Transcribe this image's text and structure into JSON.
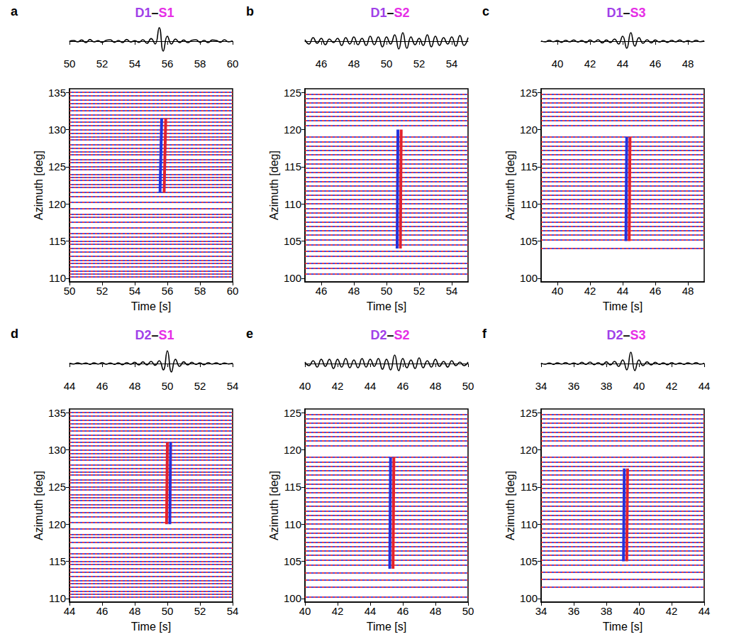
{
  "chart_data": [
    {
      "type": "record_section",
      "panel": "a",
      "title": "D1–S1",
      "xlabel": "Time [s]",
      "ylabel": "Azimuth [deg]",
      "xlim": [
        50,
        60
      ],
      "xticks": [
        50,
        52,
        54,
        56,
        58,
        60
      ],
      "ylim": [
        109.5,
        135.5
      ],
      "yticks": [
        110,
        115,
        120,
        125,
        130,
        135
      ],
      "beam": {
        "tick_labels": "x",
        "ylim": [
          -1,
          1
        ],
        "x": [
          50,
          50.25,
          50.5,
          50.75,
          51,
          51.25,
          51.5,
          51.75,
          52,
          52.25,
          52.5,
          52.75,
          53,
          53.25,
          53.5,
          53.75,
          54,
          54.25,
          54.5,
          54.75,
          55,
          55.25,
          55.5,
          55.75,
          56,
          56.25,
          56.5,
          56.75,
          57,
          57.25,
          57.5,
          57.75,
          58,
          58.25,
          58.5,
          58.75,
          59,
          59.25,
          59.5,
          59.75,
          60
        ],
        "values": [
          0,
          0.05,
          -0.05,
          0.08,
          -0.1,
          0.12,
          -0.05,
          0.03,
          -0.08,
          0.06,
          0.1,
          -0.08,
          0.05,
          -0.1,
          0.12,
          -0.06,
          0.04,
          -0.08,
          0.1,
          -0.15,
          0.18,
          -0.2,
          0.95,
          -0.7,
          0.35,
          -0.2,
          0.15,
          -0.1,
          0.08,
          -0.1,
          0.06,
          0.1,
          -0.08,
          0.06,
          -0.1,
          0.08,
          0.05,
          -0.08,
          0.1,
          -0.05,
          0.02
        ]
      },
      "stations": [
        110.2,
        110.6,
        111,
        111.5,
        112,
        112.4,
        113,
        113.5,
        114,
        114.6,
        115,
        115.5,
        116,
        116.8,
        117.6,
        118.2,
        118.6,
        119.4,
        120.2,
        121,
        121.6,
        122.2,
        122.6,
        123.2,
        123.6,
        124,
        124.6,
        125,
        125.6,
        126,
        126.6,
        127,
        127.5,
        128,
        128.6,
        129,
        129.5,
        130,
        130.6,
        131,
        131.5,
        132,
        132.6,
        133,
        133.5,
        134,
        134.6,
        135
      ],
      "arrival": {
        "azimuths": [
          121.5,
          131.5
        ],
        "trough": [
          55.55,
          55.65
        ],
        "peak": [
          55.8,
          55.9
        ]
      }
    },
    {
      "type": "record_section",
      "panel": "b",
      "title": "D1–S2",
      "xlabel": "Time [s]",
      "ylabel": "Azimuth [deg]",
      "xlim": [
        45,
        55
      ],
      "xticks": [
        46,
        48,
        50,
        52,
        54
      ],
      "ylim": [
        99.5,
        125.5
      ],
      "yticks": [
        100,
        105,
        110,
        115,
        120,
        125
      ],
      "beam": {
        "tick_labels": "x",
        "ylim": [
          -1,
          1
        ],
        "x": [
          45,
          45.25,
          45.5,
          45.75,
          46,
          46.25,
          46.5,
          46.75,
          47,
          47.25,
          47.5,
          47.75,
          48,
          48.25,
          48.5,
          48.75,
          49,
          49.25,
          49.5,
          49.75,
          50,
          50.25,
          50.5,
          50.75,
          51,
          51.25,
          51.5,
          51.75,
          52,
          52.25,
          52.5,
          52.75,
          53,
          53.25,
          53.5,
          53.75,
          54,
          54.25,
          54.5,
          54.75,
          55
        ],
        "values": [
          0.1,
          -0.2,
          0.25,
          -0.15,
          0.2,
          -0.25,
          0.15,
          -0.1,
          0.2,
          -0.3,
          0.25,
          -0.2,
          0.3,
          -0.25,
          0.2,
          -0.3,
          0.35,
          -0.25,
          0.3,
          -0.4,
          0.3,
          -0.2,
          0.45,
          -0.55,
          0.6,
          -0.5,
          0.3,
          -0.25,
          0.2,
          -0.3,
          0.45,
          -0.4,
          0.35,
          -0.3,
          0.25,
          -0.2,
          0.3,
          -0.35,
          0.4,
          -0.3,
          0.25
        ]
      },
      "stations": [
        100.6,
        101.3,
        102,
        103,
        103.6,
        104.5,
        105.2,
        105.8,
        106.4,
        107,
        107.6,
        108.2,
        108.8,
        109.4,
        110,
        110.6,
        111.2,
        111.8,
        112.4,
        113,
        113.6,
        114.2,
        114.8,
        115.4,
        116,
        116.6,
        117.2,
        117.8,
        118.4,
        119,
        120.6,
        121.2,
        121.8,
        122.4,
        123,
        123.6,
        124.2,
        124.8
      ],
      "arrival": {
        "azimuths": [
          104,
          120
        ],
        "trough": [
          50.65,
          50.7
        ],
        "peak": [
          50.85,
          50.9
        ]
      }
    },
    {
      "type": "record_section",
      "panel": "c",
      "title": "D1–S3",
      "xlabel": "Time [s]",
      "ylabel": "Azimuth [deg]",
      "xlim": [
        39,
        49
      ],
      "xticks": [
        40,
        42,
        44,
        46,
        48
      ],
      "ylim": [
        99.5,
        125.5
      ],
      "yticks": [
        100,
        105,
        110,
        115,
        120,
        125
      ],
      "beam": {
        "tick_labels": "x",
        "ylim": [
          -1,
          1
        ],
        "x": [
          39,
          39.25,
          39.5,
          39.75,
          40,
          40.25,
          40.5,
          40.75,
          41,
          41.25,
          41.5,
          41.75,
          42,
          42.25,
          42.5,
          42.75,
          43,
          43.25,
          43.5,
          43.75,
          44,
          44.25,
          44.5,
          44.75,
          45,
          45.25,
          45.5,
          45.75,
          46,
          46.25,
          46.5,
          46.75,
          47,
          47.25,
          47.5,
          47.75,
          48,
          48.25,
          48.5,
          48.75,
          49
        ],
        "values": [
          0.02,
          -0.05,
          0.06,
          -0.04,
          0.05,
          -0.08,
          0.06,
          -0.05,
          0.08,
          -0.06,
          0.05,
          -0.1,
          0.08,
          -0.06,
          0.1,
          -0.12,
          0.08,
          -0.1,
          0.15,
          -0.2,
          0.35,
          -0.5,
          0.6,
          -0.35,
          0.25,
          -0.15,
          0.1,
          -0.12,
          0.08,
          -0.06,
          0.05,
          -0.08,
          0.06,
          -0.05,
          0.08,
          -0.06,
          0.04,
          -0.05,
          0.06,
          -0.04,
          0.02
        ]
      },
      "stations": [
        104,
        105.2,
        105.8,
        106.4,
        107,
        107.6,
        108.2,
        108.8,
        109.4,
        110,
        110.6,
        111.2,
        111.8,
        112.4,
        113,
        113.6,
        114.2,
        114.8,
        115.4,
        116,
        116.6,
        117.2,
        117.8,
        118.4,
        119,
        120.6,
        121.2,
        121.8,
        122.4,
        123,
        123.6,
        124.2,
        124.8
      ],
      "arrival": {
        "azimuths": [
          105,
          119
        ],
        "trough": [
          44.2,
          44.25
        ],
        "peak": [
          44.4,
          44.45
        ]
      }
    },
    {
      "type": "record_section",
      "panel": "d",
      "title": "D2–S1",
      "xlabel": "Time [s]",
      "ylabel": "Azimuth [deg]",
      "xlim": [
        44,
        54
      ],
      "xticks": [
        44,
        46,
        48,
        50,
        52,
        54
      ],
      "ylim": [
        109.5,
        135.5
      ],
      "yticks": [
        110,
        115,
        120,
        125,
        130,
        135
      ],
      "beam": {
        "tick_labels": "x",
        "ylim": [
          -1,
          1
        ],
        "x": [
          44,
          44.25,
          44.5,
          44.75,
          45,
          45.25,
          45.5,
          45.75,
          46,
          46.25,
          46.5,
          46.75,
          47,
          47.25,
          47.5,
          47.75,
          48,
          48.25,
          48.5,
          48.75,
          49,
          49.25,
          49.5,
          49.75,
          50,
          50.25,
          50.5,
          50.75,
          51,
          51.25,
          51.5,
          51.75,
          52,
          52.25,
          52.5,
          52.75,
          53,
          53.25,
          53.5,
          53.75,
          54
        ],
        "values": [
          0.02,
          -0.04,
          0.05,
          -0.03,
          0.04,
          -0.06,
          0.05,
          -0.04,
          0.06,
          -0.05,
          0.04,
          -0.06,
          0.05,
          -0.08,
          0.06,
          -0.05,
          0.08,
          -0.1,
          0.12,
          -0.1,
          0.15,
          -0.12,
          0.2,
          -0.45,
          0.9,
          -0.6,
          0.3,
          -0.2,
          0.12,
          -0.1,
          0.08,
          -0.06,
          0.05,
          -0.08,
          0.06,
          -0.04,
          0.05,
          -0.06,
          0.04,
          -0.03,
          0.02
        ]
      },
      "stations": [
        110.2,
        110.6,
        111,
        111.5,
        112,
        112.4,
        113,
        113.5,
        114,
        114.6,
        115,
        115.5,
        116,
        116.8,
        117.6,
        118.2,
        118.6,
        119.4,
        120.2,
        121,
        121.6,
        122.2,
        122.6,
        123.2,
        123.6,
        124,
        124.6,
        125,
        125.6,
        126,
        126.6,
        127,
        127.5,
        128,
        128.6,
        129,
        129.5,
        130,
        130.6,
        131,
        131.5,
        132,
        132.6,
        133,
        133.5,
        134,
        134.6,
        135
      ],
      "arrival": {
        "azimuths": [
          120,
          131
        ],
        "trough": [
          50.15,
          50.2
        ],
        "peak": [
          49.95,
          50
        ]
      }
    },
    {
      "type": "record_section",
      "panel": "e",
      "title": "D2–S2",
      "xlabel": "Time [s]",
      "ylabel": "Azimuth [deg]",
      "xlim": [
        40,
        50
      ],
      "xticks": [
        40,
        42,
        44,
        46,
        48,
        50
      ],
      "ylim": [
        99.5,
        125.5
      ],
      "yticks": [
        100,
        105,
        110,
        115,
        120,
        125
      ],
      "beam": {
        "tick_labels": "x",
        "ylim": [
          -1,
          1
        ],
        "x": [
          40,
          40.25,
          40.5,
          40.75,
          41,
          41.25,
          41.5,
          41.75,
          42,
          42.25,
          42.5,
          42.75,
          43,
          43.25,
          43.5,
          43.75,
          44,
          44.25,
          44.5,
          44.75,
          45,
          45.25,
          45.5,
          45.75,
          46,
          46.25,
          46.5,
          46.75,
          47,
          47.25,
          47.5,
          47.75,
          48,
          48.25,
          48.5,
          48.75,
          49,
          49.25,
          49.5,
          49.75,
          50
        ],
        "values": [
          0.1,
          -0.15,
          0.2,
          -0.25,
          0.3,
          -0.2,
          0.3,
          -0.35,
          0.3,
          -0.25,
          0.35,
          -0.3,
          0.25,
          -0.3,
          0.35,
          -0.25,
          0.3,
          -0.2,
          0.35,
          -0.4,
          0.3,
          -0.45,
          0.6,
          -0.5,
          0.35,
          -0.3,
          0.25,
          -0.35,
          0.4,
          -0.3,
          0.2,
          -0.25,
          0.3,
          -0.2,
          0.15,
          -0.25,
          0.2,
          -0.15,
          0.1,
          -0.15,
          0.1
        ]
      },
      "stations": [
        100.2,
        101.5,
        102.5,
        103.4,
        104.5,
        105.2,
        105.8,
        106.4,
        107,
        107.6,
        108.2,
        108.8,
        109.4,
        110,
        110.6,
        111.2,
        111.8,
        112.4,
        113,
        113.6,
        114.2,
        114.8,
        115.4,
        116,
        116.6,
        117.2,
        117.8,
        118.4,
        119,
        120.6,
        121.2,
        121.8,
        122.4,
        123,
        123.6,
        124.2,
        124.8
      ],
      "arrival": {
        "azimuths": [
          104,
          119
        ],
        "trough": [
          45.2,
          45.25
        ],
        "peak": [
          45.4,
          45.45
        ]
      }
    },
    {
      "type": "record_section",
      "panel": "f",
      "title": "D2–S3",
      "xlabel": "Time [s]",
      "ylabel": "Azimuth [deg]",
      "xlim": [
        34,
        44
      ],
      "xticks": [
        34,
        36,
        38,
        40,
        42,
        44
      ],
      "ylim": [
        99.5,
        125.5
      ],
      "yticks": [
        100,
        105,
        110,
        115,
        120,
        125
      ],
      "beam": {
        "tick_labels": "x",
        "ylim": [
          -1,
          1
        ],
        "x": [
          34,
          34.25,
          34.5,
          34.75,
          35,
          35.25,
          35.5,
          35.75,
          36,
          36.25,
          36.5,
          36.75,
          37,
          37.25,
          37.5,
          37.75,
          38,
          38.25,
          38.5,
          38.75,
          39,
          39.25,
          39.5,
          39.75,
          40,
          40.25,
          40.5,
          40.75,
          41,
          41.25,
          41.5,
          41.75,
          42,
          42.25,
          42.5,
          42.75,
          43,
          43.25,
          43.5,
          43.75,
          44
        ],
        "values": [
          0.03,
          -0.05,
          0.04,
          -0.06,
          0.05,
          -0.04,
          0.06,
          -0.05,
          0.04,
          -0.06,
          0.08,
          -0.06,
          0.1,
          -0.08,
          0.06,
          -0.1,
          0.12,
          -0.1,
          0.15,
          -0.2,
          0.25,
          -0.45,
          0.8,
          -0.5,
          0.25,
          -0.15,
          0.12,
          -0.1,
          0.08,
          -0.06,
          0.05,
          -0.08,
          0.06,
          -0.05,
          0.04,
          -0.06,
          0.05,
          -0.04,
          0.06,
          -0.05,
          0.03
        ]
      },
      "stations": [
        101.5,
        102.6,
        103.5,
        104.5,
        105.2,
        105.8,
        106.4,
        107,
        107.6,
        108.2,
        108.8,
        109.4,
        110,
        110.6,
        111.2,
        111.8,
        112.4,
        113,
        113.6,
        114.2,
        114.8,
        115.4,
        116,
        116.6,
        117.2,
        117.8,
        118.4,
        119,
        120.6,
        121.2,
        121.8,
        122.4,
        123,
        123.6,
        124.2,
        124.8
      ],
      "arrival": {
        "azimuths": [
          105,
          117.5
        ],
        "trough": [
          39.05,
          39.1
        ],
        "peak": [
          39.25,
          39.3
        ]
      }
    }
  ]
}
